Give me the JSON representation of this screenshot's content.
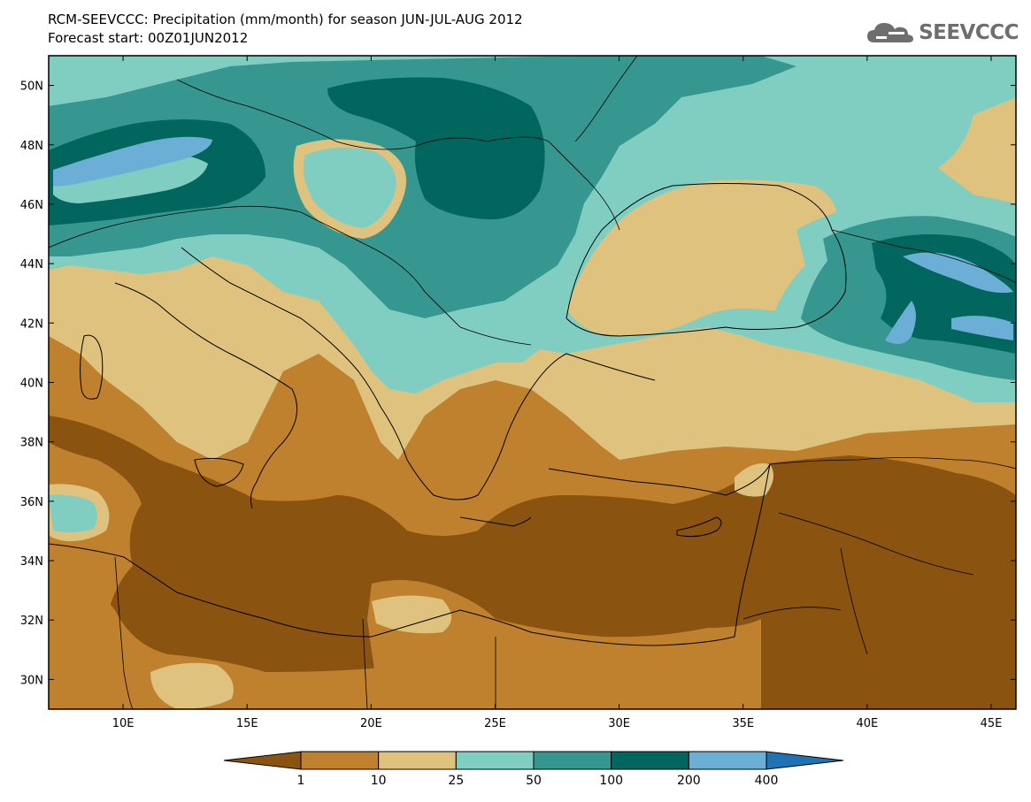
{
  "header": {
    "title_line1": "RCM-SEEVCCC: Precipitation (mm/month) for season JUN-JUL-AUG 2012",
    "title_line2": "Forecast start: 00Z01JUN2012",
    "logo_text": "SEEVCCC"
  },
  "map": {
    "lon_range": [
      7,
      46
    ],
    "lat_range": [
      29,
      51
    ],
    "lat_ticks": [
      "30N",
      "32N",
      "34N",
      "36N",
      "38N",
      "40N",
      "42N",
      "44N",
      "46N",
      "48N",
      "50N"
    ],
    "lon_ticks": [
      "10E",
      "15E",
      "20E",
      "25E",
      "30E",
      "35E",
      "40E",
      "45E"
    ],
    "colors": {
      "lt1": "#8b5310",
      "c1_10": "#bf812d",
      "c10_25": "#dfc27d",
      "c25_50": "#80cdc1",
      "c50_100": "#35978f",
      "c100_200": "#01665e",
      "c200_400": "#6baed6",
      "gt400": "#2171b5"
    }
  },
  "colorbar": {
    "labels": [
      "1",
      "10",
      "25",
      "50",
      "100",
      "200",
      "400"
    ]
  }
}
